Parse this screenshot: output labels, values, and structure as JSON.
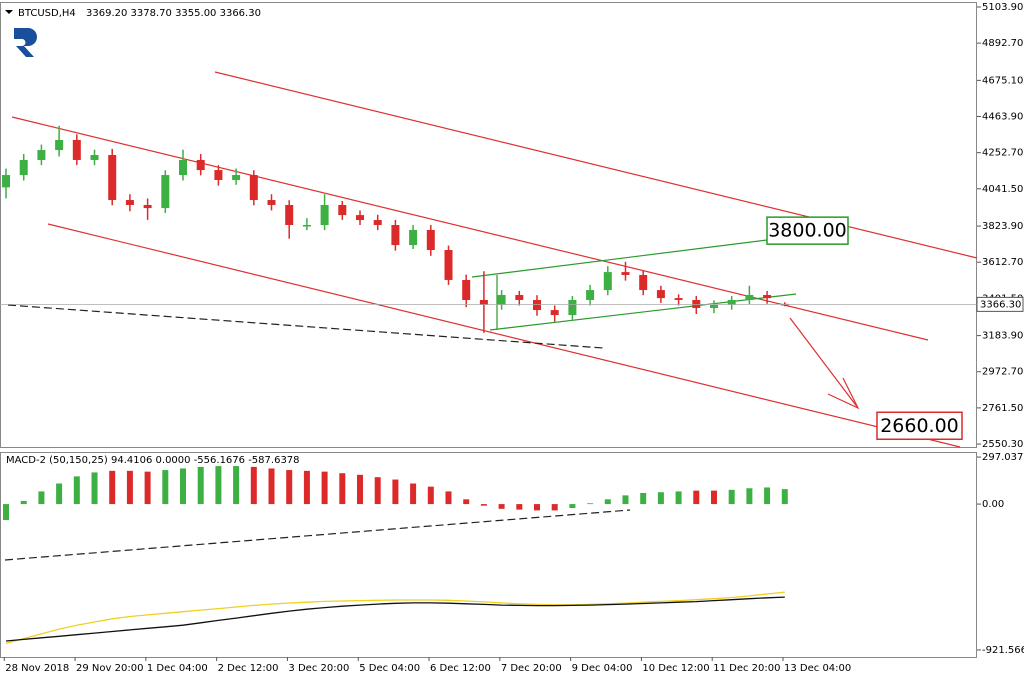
{
  "chart_data": [
    {
      "type": "candlestick",
      "title": "BTCUSD,H4",
      "subtitle": "3369.20 3378.70 3355.00 3366.30",
      "up_color": "#3cb043",
      "down_color": "#dc2a2a",
      "xlim": [
        -0.34,
        54.86
      ],
      "ylim": [
        2533,
        5133
      ],
      "yticks": [
        {
          "value": 5103.9,
          "label": "5103.90"
        },
        {
          "value": 4892.7,
          "label": "4892.70"
        },
        {
          "value": 4675.1,
          "label": "4675.10"
        },
        {
          "value": 4463.9,
          "label": "4463.90"
        },
        {
          "value": 4252.7,
          "label": "4252.70"
        },
        {
          "value": 4041.5,
          "label": "4041.50"
        },
        {
          "value": 3823.9,
          "label": "3823.90"
        },
        {
          "value": 3612.7,
          "label": "3612.70"
        },
        {
          "value": 3401.5,
          "label": "3401.50"
        },
        {
          "value": 3183.9,
          "label": "3183.90"
        },
        {
          "value": 2972.7,
          "label": "2972.70"
        },
        {
          "value": 2761.5,
          "label": "2761.50"
        },
        {
          "value": 2550.3,
          "label": "2550.30"
        }
      ],
      "last_price": {
        "value": 3366.3,
        "label": "3366.30"
      },
      "annotations": [
        {
          "value": 3800,
          "label": "3800.00",
          "color": "#2a9a2a"
        },
        {
          "value": 2660,
          "label": "2660.00",
          "color": "#dc2a2a"
        }
      ],
      "open": [
        4050,
        4122,
        4210,
        4268,
        4327,
        4210,
        4239,
        3976,
        3947,
        3929,
        4122,
        4210,
        4151,
        4093,
        4122,
        3976,
        3947,
        3830,
        3830,
        3947,
        3888,
        3859,
        3830,
        3713,
        3801,
        3684,
        3509,
        3392,
        3363,
        3421,
        3392,
        3333,
        3304,
        3392,
        3450,
        3555,
        3538,
        3450,
        3403,
        3392,
        3345,
        3363,
        3392,
        3421,
        3369.2
      ],
      "high": [
        4160,
        4245,
        4300,
        4410,
        4360,
        4270,
        4275,
        4010,
        3985,
        4150,
        4270,
        4245,
        4180,
        4160,
        4150,
        4010,
        3975,
        3870,
        4010,
        3970,
        3915,
        3890,
        3860,
        3830,
        3830,
        3710,
        3540,
        3560,
        3450,
        3445,
        3420,
        3360,
        3415,
        3480,
        3590,
        3615,
        3565,
        3475,
        3425,
        3415,
        3390,
        3415,
        3475,
        3445,
        3378.7
      ],
      "low": [
        3985,
        4090,
        4180,
        4230,
        4180,
        4180,
        3945,
        3910,
        3860,
        3900,
        4090,
        4120,
        4060,
        4065,
        3945,
        3915,
        3750,
        3800,
        3800,
        3860,
        3830,
        3800,
        3680,
        3690,
        3650,
        3480,
        3350,
        3200,
        3335,
        3360,
        3300,
        3265,
        3270,
        3360,
        3420,
        3505,
        3420,
        3375,
        3360,
        3310,
        3315,
        3335,
        3365,
        3370,
        3355
      ],
      "close": [
        4122,
        4210,
        4268,
        4327,
        4210,
        4239,
        3976,
        3947,
        3929,
        4122,
        4210,
        4151,
        4093,
        4122,
        3976,
        3947,
        3830,
        3830,
        3947,
        3888,
        3859,
        3830,
        3713,
        3801,
        3684,
        3509,
        3392,
        3363,
        3421,
        3392,
        3333,
        3304,
        3392,
        3450,
        3555,
        3538,
        3450,
        3403,
        3392,
        3345,
        3363,
        3392,
        3421,
        3403,
        3366.3
      ]
    },
    {
      "type": "macd",
      "title": "MACD-2 (50,150,25) 94.4106 0.0000 -556.1676 -587.6378",
      "xlim": [
        -0.34,
        54.86
      ],
      "ylim": [
        -966,
        329
      ],
      "yticks": [
        {
          "value": 297.0371,
          "label": "297.0371"
        },
        {
          "value": 0,
          "label": "0.00"
        },
        {
          "value": -921.5663,
          "label": "-921.5663"
        }
      ],
      "xticks": [
        {
          "value": -0.1,
          "label": "28 Nov 2018"
        },
        {
          "value": 3.9,
          "label": "29 Nov 20:00"
        },
        {
          "value": 7.9,
          "label": "1 Dec 04:00"
        },
        {
          "value": 11.9,
          "label": "2 Dec 12:00"
        },
        {
          "value": 15.9,
          "label": "3 Dec 20:00"
        },
        {
          "value": 19.9,
          "label": "5 Dec 04:00"
        },
        {
          "value": 23.9,
          "label": "6 Dec 12:00"
        },
        {
          "value": 27.9,
          "label": "7 Dec 20:00"
        },
        {
          "value": 31.9,
          "label": "9 Dec 04:00"
        },
        {
          "value": 35.9,
          "label": "10 Dec 12:00"
        },
        {
          "value": 39.9,
          "label": "11 Dec 20:00"
        },
        {
          "value": 43.9,
          "label": "13 Dec 04:00"
        }
      ],
      "histogram": [
        -101,
        20,
        80,
        130,
        175,
        200,
        210,
        210,
        205,
        215,
        225,
        235,
        240,
        240,
        235,
        225,
        215,
        210,
        205,
        195,
        185,
        170,
        155,
        130,
        110,
        80,
        30,
        -10,
        -30,
        -35,
        -40,
        -40,
        -25,
        5,
        30,
        55,
        70,
        75,
        80,
        85,
        85,
        90,
        100,
        105,
        94.4106
      ],
      "histogram_colors": [
        "#3cb043",
        "#3cb043",
        "#3cb043",
        "#3cb043",
        "#3cb043",
        "#3cb043",
        "#dc2a2a",
        "#dc2a2a",
        "#dc2a2a",
        "#3cb043",
        "#3cb043",
        "#3cb043",
        "#3cb043",
        "#3cb043",
        "#dc2a2a",
        "#dc2a2a",
        "#dc2a2a",
        "#dc2a2a",
        "#dc2a2a",
        "#dc2a2a",
        "#dc2a2a",
        "#dc2a2a",
        "#dc2a2a",
        "#dc2a2a",
        "#dc2a2a",
        "#dc2a2a",
        "#dc2a2a",
        "#dc2a2a",
        "#dc2a2a",
        "#dc2a2a",
        "#dc2a2a",
        "#dc2a2a",
        "#3cb043",
        "#3cb043",
        "#3cb043",
        "#3cb043",
        "#3cb043",
        "#3cb043",
        "#3cb043",
        "#dc2a2a",
        "#dc2a2a",
        "#3cb043",
        "#3cb043",
        "#3cb043",
        "#3cb043"
      ],
      "series": [
        {
          "color": "#f0d020",
          "values": [
            -880,
            -850,
            -820,
            -790,
            -765,
            -745,
            -725,
            -710,
            -700,
            -690,
            -680,
            -670,
            -660,
            -650,
            -640,
            -632,
            -625,
            -620,
            -615,
            -612,
            -610,
            -608,
            -606,
            -606,
            -606,
            -608,
            -612,
            -618,
            -624,
            -630,
            -634,
            -636,
            -636,
            -634,
            -630,
            -626,
            -620,
            -615,
            -610,
            -604,
            -598,
            -590,
            -580,
            -568,
            -556.1676
          ]
        },
        {
          "color": "#111111",
          "values": [
            -865,
            -855,
            -845,
            -835,
            -825,
            -815,
            -805,
            -795,
            -785,
            -775,
            -765,
            -750,
            -735,
            -720,
            -705,
            -690,
            -676,
            -664,
            -654,
            -645,
            -638,
            -632,
            -627,
            -624,
            -624,
            -626,
            -630,
            -634,
            -638,
            -640,
            -641,
            -641,
            -640,
            -638,
            -635,
            -632,
            -628,
            -624,
            -620,
            -616,
            -610,
            -604,
            -598,
            -592,
            -587.6378
          ]
        }
      ]
    }
  ]
}
